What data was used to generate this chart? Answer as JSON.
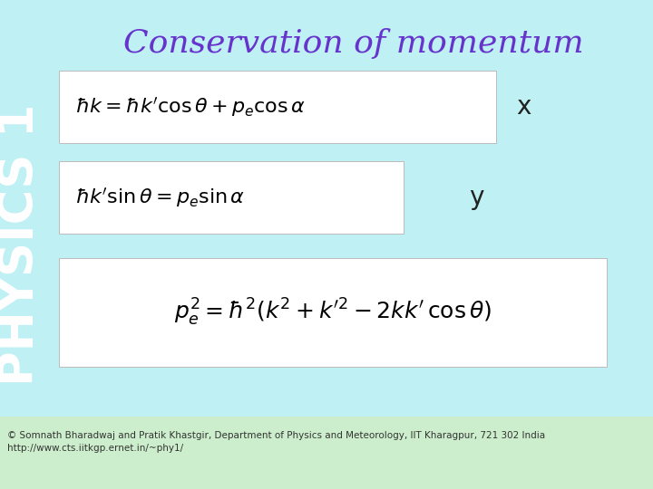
{
  "title": "Conservation of momentum",
  "title_color": "#6633cc",
  "title_fontsize": 26,
  "bg_color": "#bef0f4",
  "sidebar_text": "PHYSICS 1",
  "sidebar_text_color": "#ffffff",
  "eq1": "$\\hbar k = \\hbar k^{\\prime} \\cos\\theta + p_e \\cos\\alpha$",
  "eq1_label": "x",
  "eq2": "$\\hbar k^{\\prime} \\sin\\theta = p_e \\sin\\alpha$",
  "eq2_label": "y",
  "eq3": "$p_e^2 = \\hbar^2(k^2 + k^{\\prime 2} - 2kk^{\\prime}\\,\\cos\\theta)$",
  "box_facecolor": "#ffffff",
  "box_edgecolor": "#bbbbbb",
  "eq_fontsize": 16,
  "label_fontsize": 18,
  "label_color": "#222222",
  "footer_text": "© Somnath Bharadwaj and Pratik Khastgir, Department of Physics and Meteorology, IIT Kharagpur, 721 302 India\nhttp://www.cts.iitkgp.ernet.in/~phy1/",
  "footer_fontsize": 7.5,
  "footer_color": "#333333",
  "footer_bg": "#cceecc"
}
